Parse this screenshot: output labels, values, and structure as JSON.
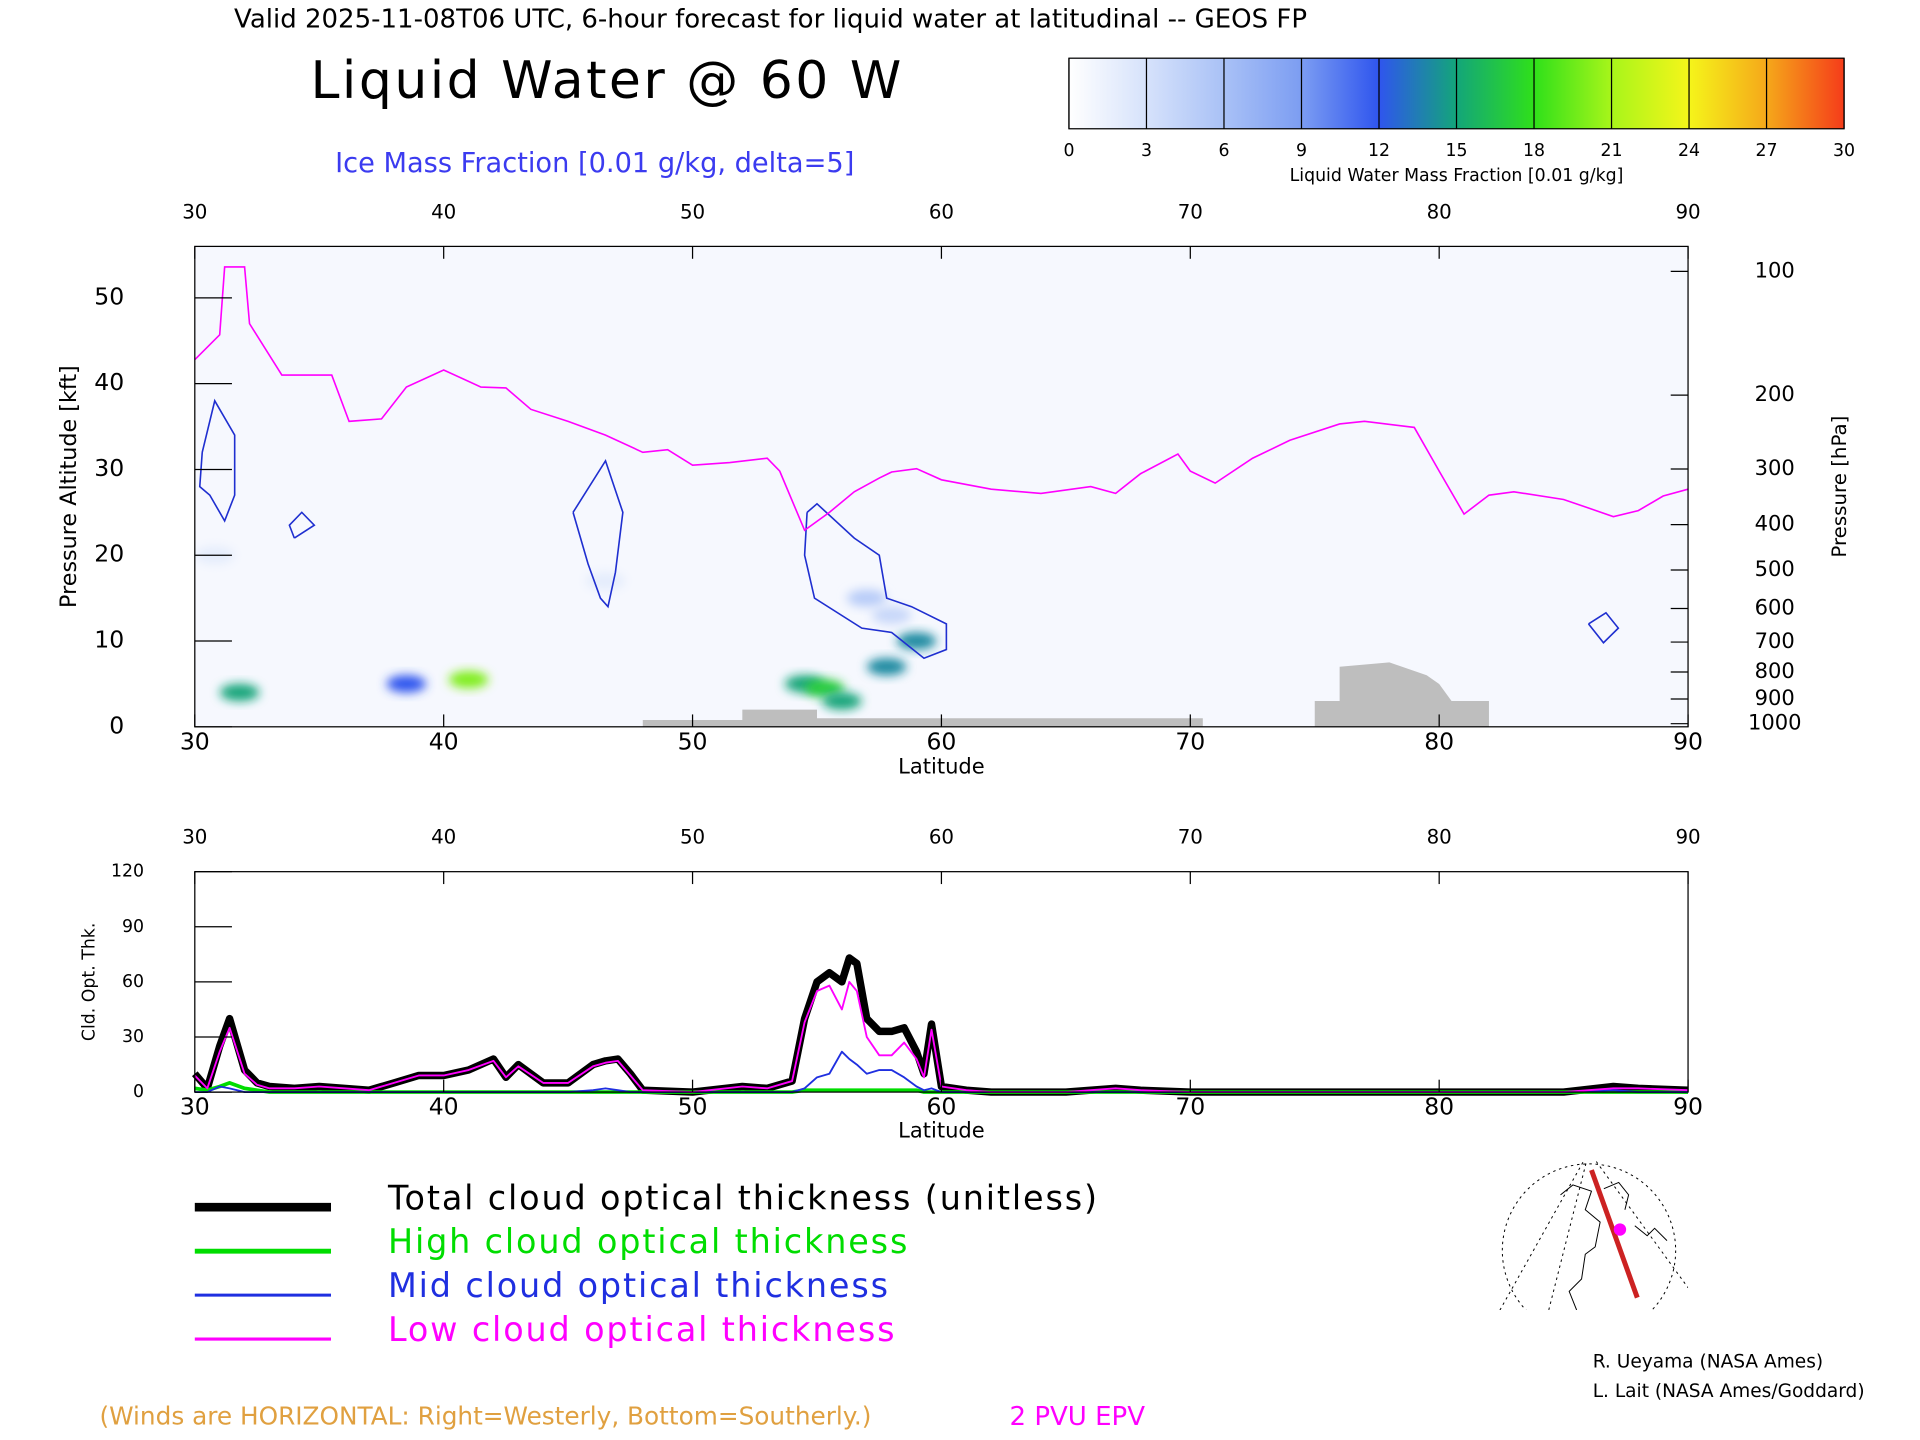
{
  "header": "Valid 2025-11-08T06 UTC, 6-hour forecast for liquid water at latitudinal -- GEOS FP",
  "credits": [
    "R. Ueyama (NASA Ames)",
    "L. Lait (NASA Ames/Goddard)"
  ],
  "wind_note": "(Winds are HORIZONTAL: Right=Westerly, Bottom=Southerly.)",
  "chart_data": [
    {
      "type": "contour",
      "title": "Liquid Water @ 60 W",
      "subtitle": "Ice Mass Fraction [0.01 g/kg, delta=5]",
      "xlabel": "Latitude",
      "ylabel": "Pressure Altitude [kft]",
      "y2label": "Pressure [hPa]",
      "xlim": [
        30,
        90
      ],
      "xticks": [
        30,
        40,
        50,
        60,
        70,
        80,
        90
      ],
      "ylim": [
        0,
        56
      ],
      "yticks": [
        0,
        10,
        20,
        30,
        40,
        50
      ],
      "y2scale": "pressure-altitude",
      "y2ticks": [
        100,
        200,
        300,
        400,
        500,
        600,
        700,
        800,
        900,
        1000
      ],
      "colorbar": {
        "label": "Liquid Water Mass Fraction [0.01 g/kg]",
        "ticks": [
          0,
          3,
          6,
          9,
          12,
          15,
          18,
          21,
          24,
          27,
          30
        ],
        "colors": [
          "#ffffff",
          "#d6e2fb",
          "#a9c1f6",
          "#7c9df2",
          "#2f55ee",
          "#13a57a",
          "#2fe01a",
          "#a8f51a",
          "#f5f51a",
          "#f5a81a",
          "#f53c1a"
        ]
      },
      "liquid_water": {
        "lat": [
          31.8,
          38.5,
          41,
          54.5,
          55.3,
          56,
          57.8,
          59,
          58,
          57,
          46.5,
          30.8
        ],
        "alt": [
          4,
          5,
          5.5,
          5,
          4.5,
          3,
          7,
          10,
          13,
          15,
          17,
          20
        ],
        "values": [
          15,
          12,
          20,
          15,
          17,
          15,
          14,
          14,
          4,
          5,
          2,
          2
        ]
      },
      "ice_color": "#1f2fd0",
      "ice_contours": [
        {
          "x": [
            30.3,
            30.8,
            31.6,
            31.6,
            31.2,
            30.6,
            30.2,
            30.3
          ],
          "y": [
            32,
            38,
            34,
            27,
            24,
            27,
            28,
            32
          ]
        },
        {
          "x": [
            34,
            34.8,
            34.3,
            33.8,
            34
          ],
          "y": [
            22,
            23.5,
            25,
            23.5,
            22
          ]
        },
        {
          "x": [
            45.2,
            46.5,
            47.2,
            46.9,
            46.6,
            46.3,
            45.8,
            45.2
          ],
          "y": [
            25,
            31,
            25,
            18,
            14,
            15,
            19,
            25
          ]
        },
        {
          "x": [
            54.6,
            55,
            56.5,
            57.5,
            57.8,
            58.8,
            60.2,
            60.2,
            59.3,
            58,
            56.8,
            54.9,
            54.5,
            54.6
          ],
          "y": [
            25,
            26,
            22,
            20,
            15,
            14,
            12,
            9,
            8,
            11,
            11.5,
            15,
            20,
            25
          ]
        },
        {
          "x": [
            86,
            86.7,
            87.2,
            86.6,
            86
          ],
          "y": [
            12,
            13.3,
            11.5,
            9.8,
            12
          ]
        }
      ],
      "terrain": {
        "color": "#bebebe",
        "x": [
          48,
          48,
          52,
          52,
          55,
          55,
          70.5,
          70.5,
          75,
          75,
          76,
          76,
          78,
          79.5,
          80,
          80.5,
          82,
          82
        ],
        "values": [
          0,
          0.8,
          0.8,
          2,
          2,
          1,
          1,
          0,
          0,
          3,
          3,
          7,
          7.5,
          6,
          5,
          3,
          3,
          0
        ]
      },
      "series": [
        {
          "name": "2 PVU EPV",
          "color": "#ff00ff",
          "x": [
            30,
            31,
            31.2,
            32,
            32.2,
            33.5,
            35.5,
            36.2,
            37.5,
            38.5,
            40,
            41.5,
            42.5,
            43.5,
            45,
            46.5,
            48,
            49,
            50,
            51.5,
            53,
            53.5,
            54.5,
            55.5,
            56.5,
            57.5,
            58,
            59,
            60,
            62,
            64,
            66,
            67,
            68,
            69.5,
            70,
            71,
            72.5,
            74,
            76,
            77,
            79,
            80,
            81,
            82,
            83,
            85,
            86,
            87,
            88,
            89,
            90
          ],
          "values": [
            42.8,
            45.7,
            53.6,
            53.6,
            47,
            41,
            41,
            35.6,
            35.9,
            39.6,
            41.6,
            39.6,
            39.5,
            37,
            35.6,
            34,
            32,
            32.3,
            30.5,
            30.8,
            31.3,
            29.8,
            22.9,
            25,
            27.4,
            29,
            29.7,
            30.1,
            28.8,
            27.7,
            27.2,
            28,
            27.2,
            29.5,
            31.8,
            29.8,
            28.4,
            31.3,
            33.4,
            35.3,
            35.6,
            34.9,
            29.8,
            24.8,
            27,
            27.4,
            26.5,
            25.5,
            24.5,
            25.2,
            26.9,
            27.7
          ]
        }
      ]
    },
    {
      "type": "line",
      "xlabel": "Latitude",
      "ylabel": "Cld. Opt. Thk.",
      "xlim": [
        30,
        90
      ],
      "xticks": [
        30,
        40,
        50,
        60,
        70,
        80,
        90
      ],
      "ylim": [
        0,
        120
      ],
      "yticks": [
        0,
        30,
        60,
        90,
        120
      ],
      "x": [
        30,
        30.5,
        31,
        31.4,
        32,
        32.5,
        33,
        34,
        35,
        36,
        37,
        38,
        39,
        40,
        41,
        42,
        42.5,
        43,
        44,
        45,
        46,
        46.5,
        47,
        47.5,
        48,
        50,
        52,
        53,
        54,
        54.5,
        55,
        55.5,
        56,
        56.3,
        56.6,
        57,
        57.5,
        58,
        58.5,
        59,
        59.3,
        59.6,
        60,
        61,
        62,
        65,
        67,
        68,
        70,
        75,
        80,
        85,
        87,
        88,
        90
      ],
      "series": [
        {
          "name": "Total cloud optical thickness (unitless)",
          "color": "#000000",
          "values": [
            10,
            2,
            25,
            40,
            12,
            5,
            3,
            2,
            3,
            2,
            1,
            5,
            9,
            9,
            12,
            18,
            8,
            15,
            5,
            5,
            15,
            17,
            18,
            10,
            1,
            0,
            3,
            2,
            6,
            40,
            60,
            65,
            60,
            73,
            70,
            40,
            33,
            33,
            35,
            22,
            10,
            37,
            3,
            1,
            0,
            0,
            2,
            1,
            0,
            0,
            0,
            0,
            3,
            2,
            1
          ]
        },
        {
          "name": "High cloud optical thickness",
          "color": "#00dd00",
          "values": [
            2,
            1,
            3,
            5,
            2,
            1,
            0,
            0,
            0,
            0,
            0,
            0,
            0,
            0,
            0,
            0,
            0,
            0,
            0,
            0,
            0,
            0,
            0,
            0,
            0,
            0,
            0,
            0,
            0,
            1,
            1,
            1,
            1,
            1,
            1,
            1,
            1,
            1,
            1,
            1,
            0,
            0,
            0,
            0,
            0,
            0,
            0,
            0,
            0,
            0,
            0,
            0,
            0,
            0,
            0
          ]
        },
        {
          "name": "Mid cloud optical thickness",
          "color": "#1f2fe0",
          "values": [
            0,
            0,
            3,
            2,
            0,
            0,
            0,
            0,
            0,
            0,
            0,
            0,
            0,
            0,
            0,
            0,
            0,
            0,
            0,
            0,
            1,
            2,
            1,
            0,
            0,
            0,
            0,
            0,
            0,
            2,
            8,
            10,
            22,
            18,
            15,
            10,
            12,
            12,
            8,
            3,
            1,
            2,
            0,
            0,
            0,
            0,
            0,
            0,
            0,
            0,
            0,
            0,
            1,
            0,
            0
          ]
        },
        {
          "name": "Low cloud optical thickness",
          "color": "#ff00ff",
          "values": [
            9,
            2,
            22,
            35,
            10,
            4,
            2,
            2,
            3,
            2,
            1,
            5,
            9,
            9,
            12,
            17,
            8,
            14,
            5,
            5,
            14,
            16,
            17,
            9,
            1,
            0,
            3,
            2,
            6,
            38,
            55,
            58,
            45,
            60,
            55,
            30,
            20,
            20,
            27,
            18,
            8,
            34,
            3,
            1,
            0,
            0,
            2,
            1,
            0,
            0,
            0,
            0,
            2,
            2,
            1
          ]
        }
      ]
    }
  ]
}
